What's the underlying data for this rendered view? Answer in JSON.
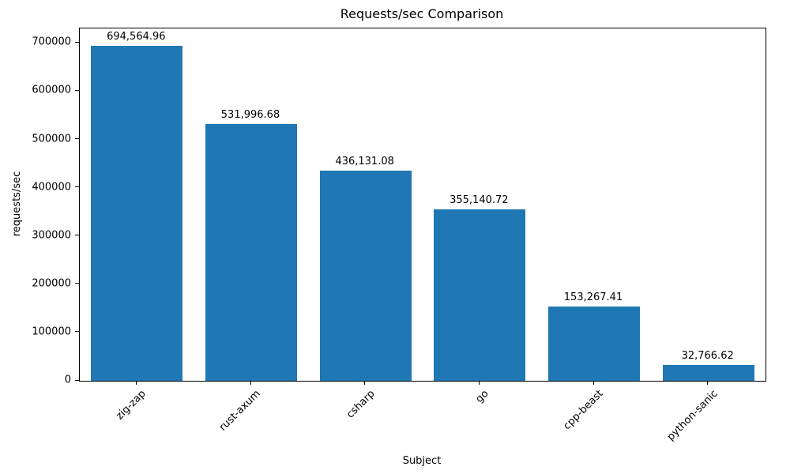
{
  "chart_data": {
    "type": "bar",
    "title": "Requests/sec Comparison",
    "xlabel": "Subject",
    "ylabel": "requests/sec",
    "categories": [
      "zig-zap",
      "rust-axum",
      "csharp",
      "go",
      "cpp-beast",
      "python-sanic"
    ],
    "values": [
      694564.96,
      531996.68,
      436131.08,
      355140.72,
      153267.41,
      32766.62
    ],
    "value_labels": [
      "694,564.96",
      "531,996.68",
      "436,131.08",
      "355,140.72",
      "153,267.41",
      "32,766.62"
    ],
    "ylim": [
      0,
      730000
    ],
    "yticks": [
      0,
      100000,
      200000,
      300000,
      400000,
      500000,
      600000,
      700000
    ],
    "ytick_labels": [
      "0",
      "100000",
      "200000",
      "300000",
      "400000",
      "500000",
      "600000",
      "700000"
    ],
    "bar_color": "#1f77b4",
    "grid": false,
    "legend_position": "none"
  }
}
